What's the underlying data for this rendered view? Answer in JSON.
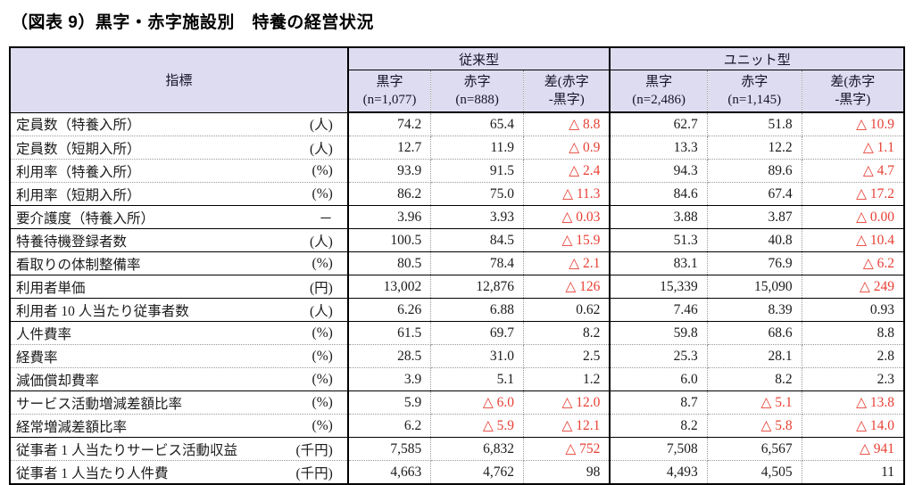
{
  "title": "（図表 9）黒字・赤字施設別　特養の経営状況",
  "table": {
    "indicator_header": "指標",
    "groups": [
      {
        "label": "従来型",
        "subcols": [
          {
            "l1": "黒字",
            "l2": "(n=1,077)"
          },
          {
            "l1": "赤字",
            "l2": "(n=888)"
          },
          {
            "l1": "差(赤字",
            "l2": "-黒字)"
          }
        ]
      },
      {
        "label": "ユニット型",
        "subcols": [
          {
            "l1": "黒字",
            "l2": "(n=2,486)"
          },
          {
            "l1": "赤字",
            "l2": "(n=1,145)"
          },
          {
            "l1": "差(赤字",
            "l2": "-黒字)"
          }
        ]
      }
    ],
    "negative_mark": "△",
    "negative_color": "#e74035",
    "header_bg": "#dedcf0",
    "rows": [
      {
        "name": "定員数（特養入所）",
        "unit": "(人)",
        "sep": "dotted",
        "values": [
          "74.2",
          "65.4",
          "△ 8.8",
          "62.7",
          "51.8",
          "△ 10.9"
        ]
      },
      {
        "name": "定員数（短期入所）",
        "unit": "(人)",
        "sep": "dotted",
        "values": [
          "12.7",
          "11.9",
          "△ 0.9",
          "13.3",
          "12.2",
          "△ 1.1"
        ]
      },
      {
        "name": "利用率（特養入所）",
        "unit": "(%)",
        "sep": "dotted",
        "values": [
          "93.9",
          "91.5",
          "△ 2.4",
          "94.3",
          "89.6",
          "△ 4.7"
        ]
      },
      {
        "name": "利用率（短期入所）",
        "unit": "(%)",
        "sep": "solid",
        "values": [
          "86.2",
          "75.0",
          "△ 11.3",
          "84.6",
          "67.4",
          "△ 17.2"
        ]
      },
      {
        "name": "要介護度（特養入所）",
        "unit": "－",
        "sep": "solid",
        "values": [
          "3.96",
          "3.93",
          "△ 0.03",
          "3.88",
          "3.87",
          "△ 0.00"
        ]
      },
      {
        "name": "特養待機登録者数",
        "unit": "(人)",
        "sep": "solid",
        "values": [
          "100.5",
          "84.5",
          "△ 15.9",
          "51.3",
          "40.8",
          "△ 10.4"
        ]
      },
      {
        "name": "看取りの体制整備率",
        "unit": "(%)",
        "sep": "solid",
        "values": [
          "80.5",
          "78.4",
          "△ 2.1",
          "83.1",
          "76.9",
          "△ 6.2"
        ]
      },
      {
        "name": "利用者単価",
        "unit": "(円)",
        "sep": "solid",
        "values": [
          "13,002",
          "12,876",
          "△ 126",
          "15,339",
          "15,090",
          "△ 249"
        ]
      },
      {
        "name": "利用者 10 人当たり従事者数",
        "unit": "(人)",
        "sep": "solid",
        "values": [
          "6.26",
          "6.88",
          "0.62",
          "7.46",
          "8.39",
          "0.93"
        ]
      },
      {
        "name": "人件費率",
        "unit": "(%)",
        "sep": "dotted",
        "values": [
          "61.5",
          "69.7",
          "8.2",
          "59.8",
          "68.6",
          "8.8"
        ]
      },
      {
        "name": "経費率",
        "unit": "(%)",
        "sep": "dotted",
        "values": [
          "28.5",
          "31.0",
          "2.5",
          "25.3",
          "28.1",
          "2.8"
        ]
      },
      {
        "name": "減価償却費率",
        "unit": "(%)",
        "sep": "solid",
        "values": [
          "3.9",
          "5.1",
          "1.2",
          "6.0",
          "8.2",
          "2.3"
        ]
      },
      {
        "name": "サービス活動増減差額比率",
        "unit": "(%)",
        "sep": "dotted",
        "values": [
          "5.9",
          "△ 6.0",
          "△ 12.0",
          "8.7",
          "△ 5.1",
          "△ 13.8"
        ]
      },
      {
        "name": "経常増減差額比率",
        "unit": "(%)",
        "sep": "solid",
        "values": [
          "6.2",
          "△ 5.9",
          "△ 12.1",
          "8.2",
          "△ 5.8",
          "△ 14.0"
        ]
      },
      {
        "name": "従事者 1 人当たりサービス活動収益",
        "unit": "(千円)",
        "sep": "dotted",
        "values": [
          "7,585",
          "6,832",
          "△ 752",
          "7,508",
          "6,567",
          "△ 941"
        ]
      },
      {
        "name": "従事者 1 人当たり人件費",
        "unit": "(千円)",
        "sep": "none",
        "values": [
          "4,663",
          "4,762",
          "98",
          "4,493",
          "4,505",
          "11"
        ]
      }
    ]
  }
}
